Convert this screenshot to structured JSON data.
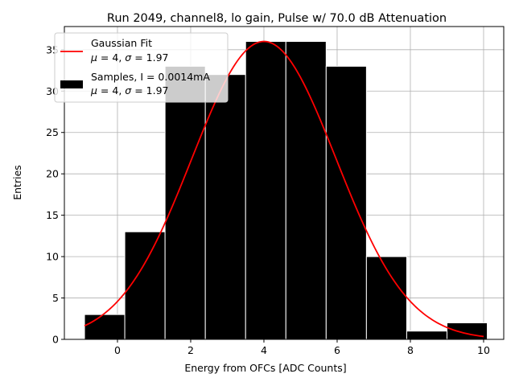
{
  "chart_data": {
    "type": "bar",
    "title": "Run 2049, channel8, lo gain, Pulse w/ 70.0 dB Attenuation",
    "xlabel": "Energy from OFCs [ADC Counts]",
    "ylabel": "Entries",
    "xlim": [
      -1.45,
      10.55
    ],
    "ylim": [
      0,
      37.8
    ],
    "xticks": [
      0,
      2,
      4,
      6,
      8,
      10
    ],
    "xtick_labels": [
      "0",
      "2",
      "4",
      "6",
      "8",
      "10"
    ],
    "yticks": [
      0,
      5,
      10,
      15,
      20,
      25,
      30,
      35
    ],
    "ytick_labels": [
      "0",
      "5",
      "10",
      "15",
      "20",
      "25",
      "30",
      "35"
    ],
    "grid": true,
    "legend_position": "top-left",
    "bin_width": 1.1,
    "bin_left_edges": [
      -0.9,
      0.2,
      1.3,
      2.4,
      3.5,
      4.6,
      5.7,
      6.8,
      7.9,
      9.0
    ],
    "values": [
      3,
      13,
      33,
      32,
      36,
      36,
      33,
      10,
      1,
      2
    ],
    "fit": {
      "mu": 4,
      "sigma": 1.97,
      "amplitude": 36,
      "x_range": [
        -0.9,
        10.0
      ]
    },
    "series": [
      {
        "name": "Gaussian Fit",
        "kind": "line",
        "color": "#ff0000"
      },
      {
        "name": "Samples",
        "kind": "bar",
        "color": "#000000"
      }
    ],
    "legend": [
      {
        "line1": "Gaussian Fit",
        "line2_parts": [
          "μ",
          " = 4, ",
          "σ",
          " = 1.97"
        ]
      },
      {
        "line1": "Samples, I = 0.0014mA",
        "line2_parts": [
          "μ",
          " = 4, ",
          "σ",
          " = 1.97"
        ]
      }
    ]
  }
}
